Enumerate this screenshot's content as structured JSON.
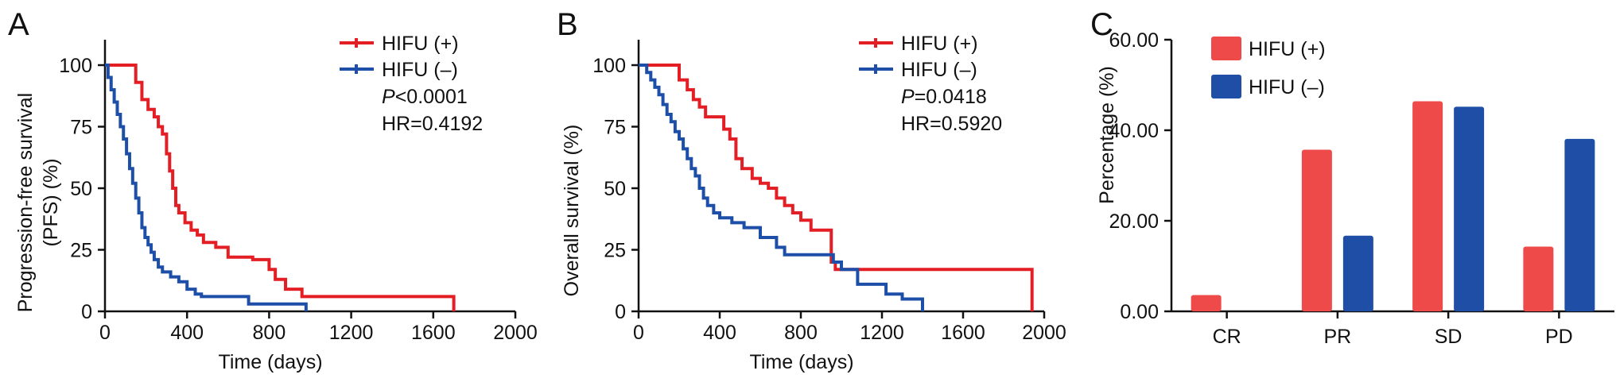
{
  "colors": {
    "hifu_pos": "#e31e24",
    "hifu_neg": "#1d4fa8",
    "bar_pos": "#ee4a4a",
    "bar_neg": "#1f4ea6"
  },
  "chart_data": [
    {
      "panel": "A",
      "type": "line",
      "subtype": "kaplan-meier step",
      "xlabel": "Time (days)",
      "ylabel": [
        "Progression-free survival",
        "(PFS) (%)"
      ],
      "xlim": [
        0,
        2000
      ],
      "ylim": [
        0,
        100
      ],
      "xticks": [
        "0",
        "400",
        "800",
        "1200",
        "1600",
        "2000"
      ],
      "yticks": [
        "0",
        "25",
        "50",
        "75",
        "100"
      ],
      "series": [
        {
          "name": "HIFU (+)",
          "color": "#e31e24",
          "points": [
            [
              0,
              100
            ],
            [
              120,
              100
            ],
            [
              150,
              93
            ],
            [
              180,
              86
            ],
            [
              210,
              82
            ],
            [
              240,
              79
            ],
            [
              260,
              75
            ],
            [
              280,
              72
            ],
            [
              300,
              64
            ],
            [
              315,
              57
            ],
            [
              330,
              50
            ],
            [
              345,
              43
            ],
            [
              360,
              40
            ],
            [
              390,
              36
            ],
            [
              420,
              33
            ],
            [
              450,
              31
            ],
            [
              480,
              28
            ],
            [
              540,
              26
            ],
            [
              600,
              22
            ],
            [
              680,
              22
            ],
            [
              720,
              21
            ],
            [
              780,
              21
            ],
            [
              800,
              17
            ],
            [
              830,
              13
            ],
            [
              880,
              9
            ],
            [
              960,
              6
            ],
            [
              1700,
              6
            ],
            [
              1700,
              0
            ]
          ]
        },
        {
          "name": "HIFU (–)",
          "color": "#1d4fa8",
          "points": [
            [
              0,
              100
            ],
            [
              15,
              95
            ],
            [
              30,
              90
            ],
            [
              45,
              85
            ],
            [
              60,
              80
            ],
            [
              75,
              75
            ],
            [
              90,
              70
            ],
            [
              105,
              64
            ],
            [
              120,
              58
            ],
            [
              135,
              52
            ],
            [
              150,
              46
            ],
            [
              165,
              40
            ],
            [
              180,
              34
            ],
            [
              195,
              30
            ],
            [
              210,
              27
            ],
            [
              225,
              24
            ],
            [
              240,
              21
            ],
            [
              260,
              18
            ],
            [
              280,
              16
            ],
            [
              320,
              14
            ],
            [
              360,
              12
            ],
            [
              400,
              9
            ],
            [
              440,
              7
            ],
            [
              470,
              6
            ],
            [
              700,
              3
            ],
            [
              980,
              3
            ],
            [
              980,
              0
            ]
          ]
        }
      ],
      "legend": [
        "HIFU (+)",
        "HIFU (–)"
      ],
      "annotations": {
        "p_prefix": "P",
        "p_rest": "<0.0001",
        "hr": "HR=0.4192"
      }
    },
    {
      "panel": "B",
      "type": "line",
      "subtype": "kaplan-meier step",
      "xlabel": "Time (days)",
      "ylabel": [
        "Overall survival (%)"
      ],
      "xlim": [
        0,
        2000
      ],
      "ylim": [
        0,
        100
      ],
      "xticks": [
        "0",
        "400",
        "800",
        "1200",
        "1600",
        "2000"
      ],
      "yticks": [
        "0",
        "25",
        "50",
        "75",
        "100"
      ],
      "series": [
        {
          "name": "HIFU (+)",
          "color": "#e31e24",
          "points": [
            [
              0,
              100
            ],
            [
              150,
              100
            ],
            [
              200,
              94
            ],
            [
              240,
              90
            ],
            [
              270,
              86
            ],
            [
              300,
              83
            ],
            [
              330,
              79
            ],
            [
              400,
              79
            ],
            [
              420,
              74
            ],
            [
              450,
              70
            ],
            [
              480,
              62
            ],
            [
              510,
              58
            ],
            [
              560,
              54
            ],
            [
              600,
              52
            ],
            [
              640,
              50
            ],
            [
              680,
              46
            ],
            [
              720,
              43
            ],
            [
              760,
              40
            ],
            [
              800,
              37
            ],
            [
              850,
              33
            ],
            [
              930,
              33
            ],
            [
              950,
              20
            ],
            [
              970,
              17
            ],
            [
              1940,
              17
            ],
            [
              1940,
              0
            ]
          ]
        },
        {
          "name": "HIFU (–)",
          "color": "#1d4fa8",
          "points": [
            [
              0,
              100
            ],
            [
              40,
              97
            ],
            [
              60,
              94
            ],
            [
              80,
              91
            ],
            [
              100,
              88
            ],
            [
              120,
              84
            ],
            [
              140,
              80
            ],
            [
              160,
              77
            ],
            [
              180,
              73
            ],
            [
              200,
              70
            ],
            [
              220,
              66
            ],
            [
              240,
              62
            ],
            [
              260,
              58
            ],
            [
              280,
              55
            ],
            [
              300,
              50
            ],
            [
              320,
              46
            ],
            [
              340,
              43
            ],
            [
              370,
              40
            ],
            [
              400,
              38
            ],
            [
              460,
              36
            ],
            [
              520,
              34
            ],
            [
              600,
              30
            ],
            [
              680,
              26
            ],
            [
              720,
              23
            ],
            [
              900,
              23
            ],
            [
              960,
              20
            ],
            [
              1000,
              17
            ],
            [
              1080,
              11
            ],
            [
              1220,
              7
            ],
            [
              1300,
              5
            ],
            [
              1400,
              5
            ],
            [
              1400,
              0
            ]
          ]
        }
      ],
      "legend": [
        "HIFU (+)",
        "HIFU (–)"
      ],
      "annotations": {
        "p_prefix": "P",
        "p_rest": "=0.0418",
        "hr": "HR=0.5920"
      }
    },
    {
      "panel": "C",
      "type": "bar",
      "xlabel": "",
      "ylabel": "Percentage (%)",
      "ylim": [
        0,
        60
      ],
      "yticks": [
        "0.00",
        "20.00",
        "40.00",
        "60.00"
      ],
      "categories": [
        "CR",
        "PR",
        "SD",
        "PD"
      ],
      "series": [
        {
          "name": "HIFU (+)",
          "color": "#ee4a4a",
          "values": [
            3.6,
            35.7,
            46.4,
            14.3
          ]
        },
        {
          "name": "HIFU (–)",
          "color": "#1f4ea6",
          "values": [
            0,
            16.7,
            45.2,
            38.1
          ]
        }
      ],
      "legend": [
        "HIFU (+)",
        "HIFU (–)"
      ]
    }
  ]
}
